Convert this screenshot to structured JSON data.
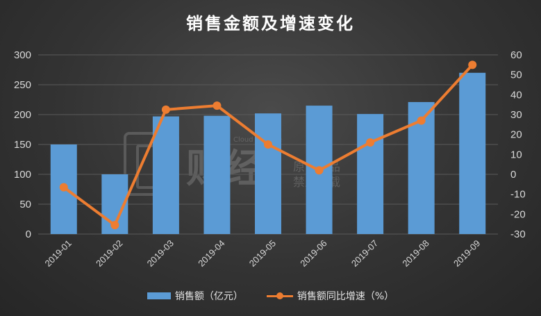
{
  "chart_data": {
    "type": "bar",
    "title": "销售金额及增速变化",
    "categories": [
      "2019-01",
      "2019-02",
      "2019-03",
      "2019-04",
      "2019-05",
      "2019-06",
      "2019-07",
      "2019-08",
      "2019-09"
    ],
    "series": [
      {
        "name": "销售额（亿元）",
        "type": "bar",
        "axis": "left",
        "values": [
          150,
          100,
          197,
          198,
          202,
          215,
          201,
          221,
          270
        ]
      },
      {
        "name": "销售额同比增速（%）",
        "type": "line",
        "axis": "right",
        "values": [
          -6.5,
          -25.5,
          32.5,
          34.5,
          15,
          2,
          16,
          27,
          55
        ]
      }
    ],
    "y_left": {
      "min": 0,
      "max": 300,
      "ticks": [
        0,
        50,
        100,
        150,
        200,
        250,
        300
      ]
    },
    "y_right": {
      "min": -30,
      "max": 60,
      "ticks": [
        -30,
        -20,
        -10,
        0,
        10,
        20,
        30,
        40,
        50,
        60
      ]
    },
    "grid": true,
    "legend_position": "bottom",
    "colors": {
      "bar": "#5b9bd5",
      "line": "#ed7d31",
      "grid": "#5a5a5a",
      "text": "#d9d9d9"
    }
  },
  "watermark": {
    "big": "财经",
    "small_line1": "原创精品",
    "small_line2": "禁止转载",
    "en": "Cloud Finance"
  }
}
